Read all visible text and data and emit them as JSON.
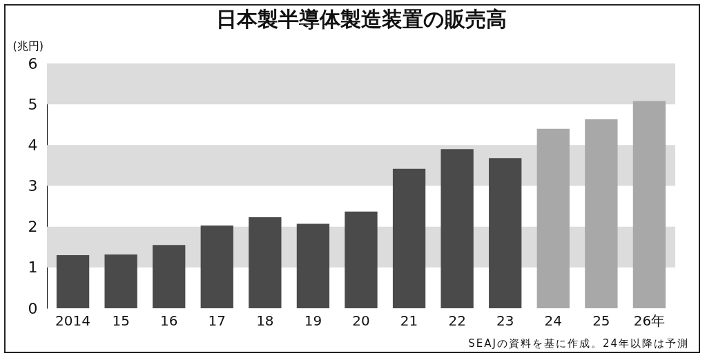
{
  "chart_data": {
    "type": "bar",
    "title": "日本製半導体製造装置の販売高",
    "ylabel": "(兆円)",
    "categories": [
      "2014",
      "15",
      "16",
      "17",
      "18",
      "19",
      "20",
      "21",
      "22",
      "23",
      "24",
      "25",
      "26年"
    ],
    "values": [
      1.3,
      1.32,
      1.55,
      2.03,
      2.23,
      2.07,
      2.37,
      3.42,
      3.9,
      3.68,
      4.4,
      4.63,
      5.08
    ],
    "colors": [
      "#4a4a4a",
      "#4a4a4a",
      "#4a4a4a",
      "#4a4a4a",
      "#4a4a4a",
      "#4a4a4a",
      "#4a4a4a",
      "#4a4a4a",
      "#4a4a4a",
      "#4a4a4a",
      "#a8a8a8",
      "#a8a8a8",
      "#a8a8a8"
    ],
    "ylim": [
      0,
      6
    ],
    "yticks": [
      0,
      1,
      2,
      3,
      4,
      5,
      6
    ],
    "bands": [
      {
        "axis": "y",
        "from": 1,
        "to": 2,
        "color": "#dcdcdc"
      },
      {
        "axis": "y",
        "from": 3,
        "to": 4,
        "color": "#dcdcdc"
      },
      {
        "axis": "y",
        "from": 5,
        "to": 6,
        "color": "#dcdcdc"
      }
    ],
    "annotations": [
      "SEAJの資料を基に作成。24年以降は予測"
    ]
  }
}
